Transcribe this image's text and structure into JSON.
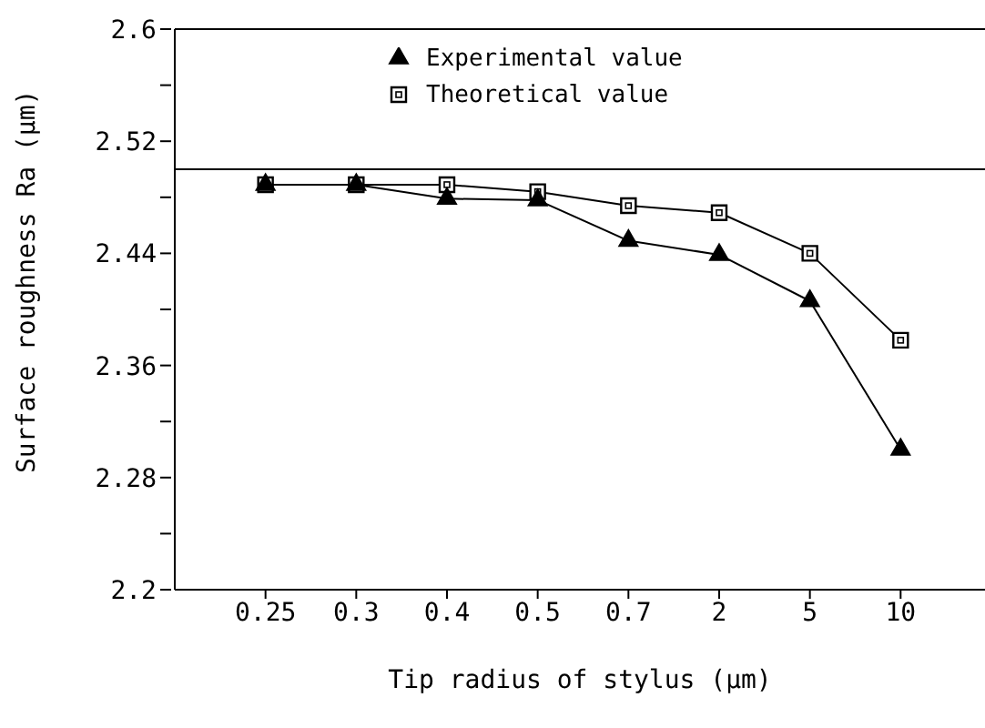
{
  "chart_data": {
    "type": "line",
    "categories": [
      "0.25",
      "0.3",
      "0.4",
      "0.5",
      "0.7",
      "2",
      "5",
      "10"
    ],
    "xlabel": "Tip radius of stylus (µm)",
    "ylabel": "Surface roughness Ra (µm)",
    "series": [
      {
        "name": "Experimental value",
        "color": "#000000",
        "marker": "triangle",
        "values": [
          2.489,
          2.489,
          2.479,
          2.478,
          2.449,
          2.439,
          2.406,
          2.3
        ]
      },
      {
        "name": "Theoretical value",
        "color": "#000000",
        "marker": "square",
        "values": [
          2.489,
          2.489,
          2.489,
          2.484,
          2.474,
          2.469,
          2.44,
          2.378
        ]
      }
    ],
    "ylim": [
      2.2,
      2.6
    ],
    "yticks": [
      2.2,
      {
        "value": 2.24,
        "label": null
      },
      2.28,
      {
        "value": 2.32,
        "label": null
      },
      2.36,
      {
        "value": 2.4,
        "label": null
      },
      2.44,
      {
        "value": 2.48,
        "label": null
      },
      2.52,
      {
        "value": 2.56,
        "label": null
      },
      2.6
    ],
    "ref_lines": [
      {
        "axis": "y",
        "value": 2.5,
        "color": "#000000"
      }
    ],
    "grid": false,
    "legend": "top",
    "line_style": "solid"
  }
}
